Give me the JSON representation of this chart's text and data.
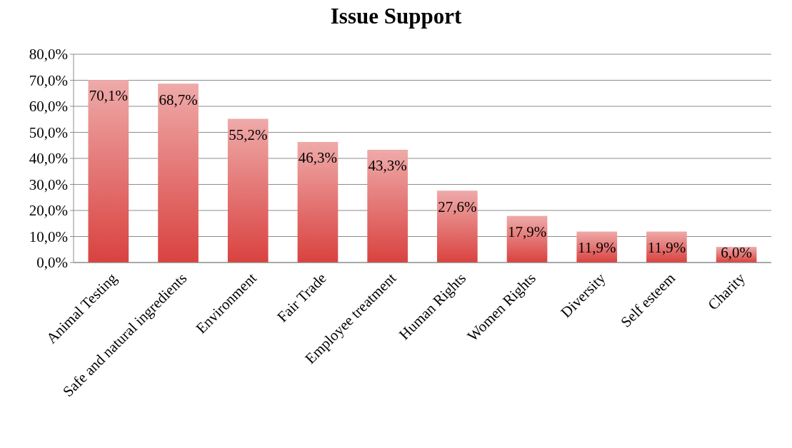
{
  "chart_data": {
    "type": "bar",
    "title": "Issue Support",
    "categories": [
      "Animal Testing",
      "Safe and natural ingredients",
      "Environment",
      "Fair Trade",
      "Employee treatment",
      "Human Rights",
      "Women Rights",
      "Diversity",
      "Self esteem",
      "Charity"
    ],
    "values": [
      70.1,
      68.7,
      55.2,
      46.3,
      43.3,
      27.6,
      17.9,
      11.9,
      11.9,
      6.0
    ],
    "value_labels": [
      "70,1%",
      "68,7%",
      "55,2%",
      "46,3%",
      "43,3%",
      "27,6%",
      "17,9%",
      "11,9%",
      "11,9%",
      "6,0%"
    ],
    "color": "#d9423f",
    "ylim": [
      0,
      80
    ],
    "yticks": [
      {
        "value": 0,
        "label": "0,0%"
      },
      {
        "value": 10,
        "label": "10,0%"
      },
      {
        "value": 20,
        "label": "20,0%"
      },
      {
        "value": 30,
        "label": "30,0%"
      },
      {
        "value": 40,
        "label": "40,0%"
      },
      {
        "value": 50,
        "label": "50,0%"
      },
      {
        "value": 60,
        "label": "60,0%"
      },
      {
        "value": 70,
        "label": "70,0%"
      },
      {
        "value": 80,
        "label": "80,0%"
      }
    ],
    "grid": "y"
  }
}
